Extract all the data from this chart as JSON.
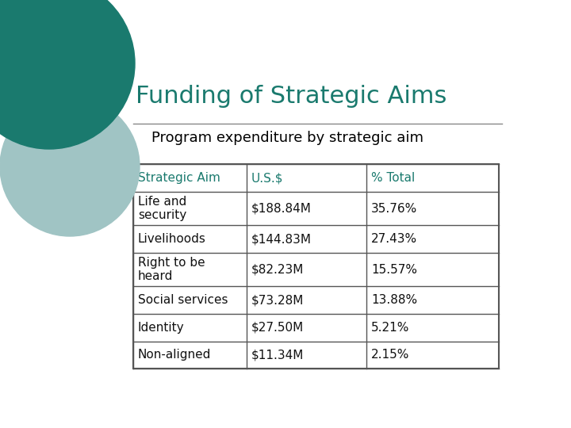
{
  "title": "Funding of Strategic Aims",
  "subtitle": "Program expenditure by strategic aim",
  "title_color": "#1a7a6e",
  "subtitle_color": "#000000",
  "background_color": "#ffffff",
  "header_row": [
    "Strategic Aim",
    "U.S.$",
    "% Total"
  ],
  "header_text_color": "#1a7a6e",
  "rows": [
    [
      "Life and\nsecurity",
      "$188.84M",
      "35.76%"
    ],
    [
      "Livelihoods",
      "$144.83M",
      "27.43%"
    ],
    [
      "Right to be\nheard",
      "$82.23M",
      "15.57%"
    ],
    [
      "Social services",
      "$73.28M",
      "13.88%"
    ],
    [
      "Identity",
      "$27.50M",
      "5.21%"
    ],
    [
      "Non-aligned",
      "$11.34M",
      "2.15%"
    ]
  ],
  "circle_dark_color": "#1a7a6e",
  "circle_light_color": "#a0c4c4",
  "line_color": "#888888",
  "table_border_color": "#555555",
  "cell_text_color": "#111111",
  "title_fontsize": 22,
  "subtitle_fontsize": 13,
  "header_fontsize": 11,
  "cell_fontsize": 11
}
